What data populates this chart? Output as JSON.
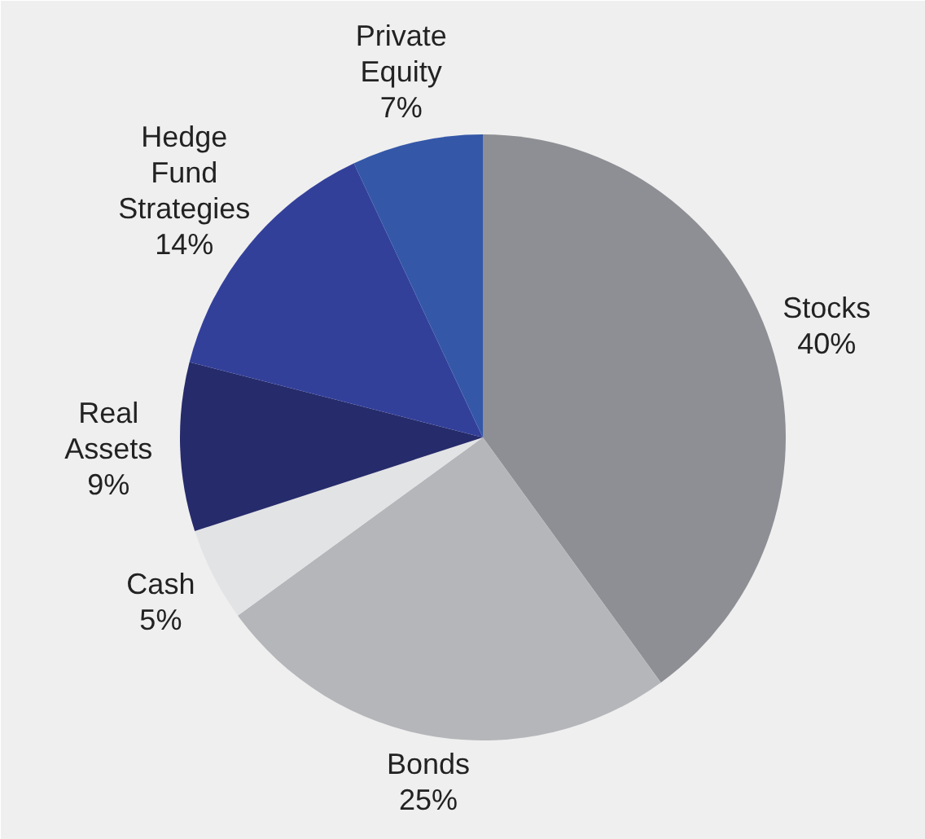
{
  "chart_data": {
    "type": "pie",
    "categories": [
      "Stocks",
      "Bonds",
      "Cash",
      "Real Assets",
      "Hedge Fund Strategies",
      "Private Equity"
    ],
    "values": [
      40,
      25,
      5,
      9,
      14,
      7
    ],
    "colors": [
      "#8e8f94",
      "#b5b6ba",
      "#e2e3e5",
      "#262b6b",
      "#33409a",
      "#3457a8"
    ],
    "value_labels": [
      "40%",
      "25%",
      "5%",
      "9%",
      "14%",
      "7%"
    ]
  }
}
